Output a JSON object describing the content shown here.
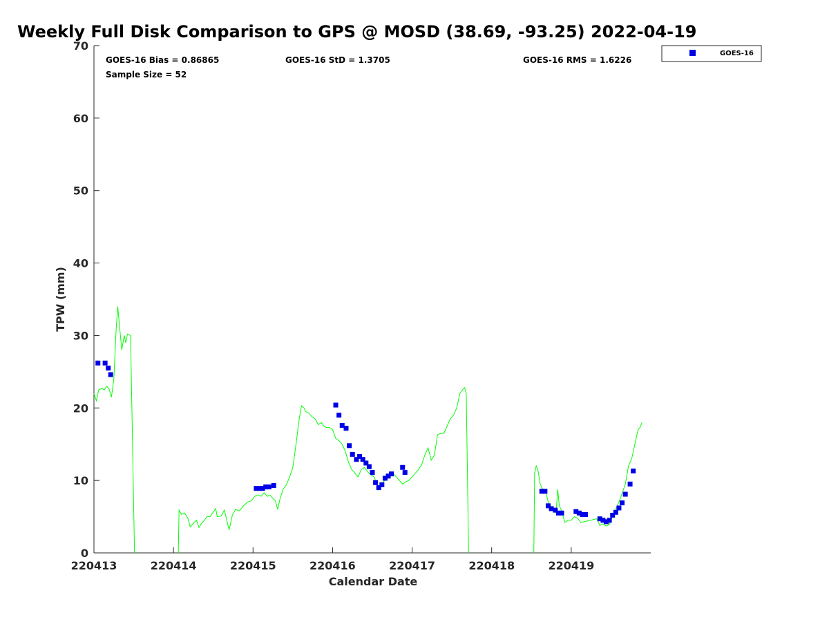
{
  "chart_data": {
    "type": "scatter",
    "title": "Weekly Full Disk Comparison to GPS @ MOSD (38.69, -93.25) 2022-04-19",
    "xlabel": "Calendar Date",
    "ylabel": "TPW (mm)",
    "xlim": [
      0,
      7
    ],
    "ylim": [
      0,
      70
    ],
    "x_tick_positions": [
      0,
      1,
      2,
      3,
      4,
      5,
      6
    ],
    "x_tick_labels": [
      "220413",
      "220414",
      "220415",
      "220416",
      "220417",
      "220418",
      "220419"
    ],
    "y_ticks": [
      0,
      10,
      20,
      30,
      40,
      50,
      60,
      70
    ],
    "grid": false,
    "legend_position": "outside-top-right",
    "stats": {
      "bias": "GOES-16 Bias = 0.86865",
      "std": "GOES-16 StD = 1.3705",
      "rms": "GOES-16 RMS = 1.6226",
      "sample_size": "Sample Size = 52"
    },
    "gps_line": {
      "color": "#00ff00",
      "segments": [
        [
          [
            0.0,
            22.0
          ],
          [
            0.03,
            21.0
          ],
          [
            0.06,
            22.5
          ],
          [
            0.1,
            22.7
          ],
          [
            0.13,
            22.5
          ],
          [
            0.16,
            23.0
          ],
          [
            0.19,
            22.6
          ],
          [
            0.22,
            21.5
          ],
          [
            0.25,
            24.0
          ],
          [
            0.28,
            31.0
          ],
          [
            0.3,
            34.0
          ],
          [
            0.32,
            31.5
          ],
          [
            0.35,
            28.0
          ],
          [
            0.38,
            30.0
          ],
          [
            0.4,
            29.0
          ],
          [
            0.42,
            30.2
          ],
          [
            0.46,
            30.0
          ],
          [
            0.51,
            0.0
          ]
        ],
        [
          [
            1.06,
            0.0
          ],
          [
            1.07,
            5.9
          ],
          [
            1.1,
            5.3
          ],
          [
            1.14,
            5.5
          ],
          [
            1.18,
            4.8
          ],
          [
            1.21,
            3.6
          ],
          [
            1.26,
            4.2
          ],
          [
            1.29,
            4.5
          ],
          [
            1.32,
            3.5
          ],
          [
            1.36,
            4.2
          ],
          [
            1.39,
            4.5
          ],
          [
            1.42,
            5.0
          ],
          [
            1.46,
            5.0
          ],
          [
            1.49,
            5.5
          ],
          [
            1.53,
            6.1
          ],
          [
            1.55,
            5.0
          ],
          [
            1.6,
            5.1
          ],
          [
            1.64,
            5.9
          ],
          [
            1.67,
            4.5
          ],
          [
            1.7,
            3.2
          ],
          [
            1.74,
            5.2
          ],
          [
            1.78,
            6.0
          ],
          [
            1.83,
            5.8
          ],
          [
            1.88,
            6.5
          ],
          [
            1.93,
            7.0
          ],
          [
            1.98,
            7.2
          ],
          [
            2.02,
            7.8
          ],
          [
            2.06,
            8.0
          ],
          [
            2.1,
            7.8
          ],
          [
            2.14,
            8.3
          ],
          [
            2.18,
            7.8
          ],
          [
            2.21,
            8.0
          ],
          [
            2.25,
            7.5
          ],
          [
            2.28,
            7.2
          ],
          [
            2.31,
            6.0
          ],
          [
            2.34,
            7.5
          ],
          [
            2.38,
            8.8
          ],
          [
            2.42,
            9.4
          ],
          [
            2.46,
            10.5
          ],
          [
            2.5,
            11.8
          ],
          [
            2.54,
            15.0
          ],
          [
            2.58,
            18.5
          ],
          [
            2.61,
            20.3
          ],
          [
            2.64,
            20.0
          ],
          [
            2.66,
            19.5
          ],
          [
            2.7,
            19.3
          ],
          [
            2.74,
            18.8
          ],
          [
            2.78,
            18.5
          ],
          [
            2.82,
            17.7
          ],
          [
            2.86,
            18.0
          ],
          [
            2.89,
            17.5
          ],
          [
            2.92,
            17.3
          ],
          [
            2.96,
            17.3
          ],
          [
            3.0,
            17.0
          ],
          [
            3.04,
            15.8
          ],
          [
            3.08,
            15.5
          ],
          [
            3.12,
            15.0
          ],
          [
            3.16,
            14.0
          ],
          [
            3.2,
            12.5
          ],
          [
            3.24,
            11.5
          ],
          [
            3.28,
            11.0
          ],
          [
            3.32,
            10.5
          ],
          [
            3.36,
            11.5
          ],
          [
            3.4,
            11.8
          ],
          [
            3.44,
            11.2
          ],
          [
            3.48,
            10.8
          ],
          [
            3.52,
            10.5
          ],
          [
            3.56,
            9.5
          ],
          [
            3.6,
            8.8
          ],
          [
            3.64,
            9.8
          ],
          [
            3.68,
            10.3
          ],
          [
            3.72,
            10.5
          ],
          [
            3.76,
            11.0
          ],
          [
            3.8,
            10.5
          ],
          [
            3.84,
            10.0
          ],
          [
            3.88,
            9.5
          ],
          [
            3.92,
            9.8
          ],
          [
            3.96,
            10.0
          ],
          [
            4.0,
            10.5
          ],
          [
            4.04,
            11.0
          ],
          [
            4.08,
            11.5
          ],
          [
            4.12,
            12.2
          ],
          [
            4.16,
            13.5
          ],
          [
            4.2,
            14.5
          ],
          [
            4.24,
            12.8
          ],
          [
            4.28,
            13.5
          ],
          [
            4.32,
            16.3
          ],
          [
            4.36,
            16.5
          ],
          [
            4.4,
            16.5
          ],
          [
            4.44,
            17.5
          ],
          [
            4.48,
            18.5
          ],
          [
            4.52,
            19.0
          ],
          [
            4.56,
            20.0
          ],
          [
            4.6,
            22.0
          ],
          [
            4.64,
            22.6
          ],
          [
            4.66,
            22.8
          ],
          [
            4.68,
            22.0
          ],
          [
            4.71,
            0.0
          ]
        ],
        [
          [
            5.53,
            0.0
          ],
          [
            5.54,
            11.0
          ],
          [
            5.56,
            12.0
          ],
          [
            5.58,
            11.5
          ],
          [
            5.61,
            9.5
          ],
          [
            5.64,
            8.8
          ],
          [
            5.68,
            8.5
          ],
          [
            5.71,
            7.0
          ],
          [
            5.74,
            6.5
          ],
          [
            5.78,
            6.0
          ],
          [
            5.81,
            5.5
          ],
          [
            5.83,
            8.8
          ],
          [
            5.85,
            6.5
          ],
          [
            5.88,
            5.8
          ],
          [
            5.92,
            4.2
          ],
          [
            5.96,
            4.5
          ],
          [
            6.0,
            4.5
          ],
          [
            6.04,
            5.0
          ],
          [
            6.08,
            4.8
          ],
          [
            6.12,
            4.2
          ],
          [
            6.16,
            4.3
          ],
          [
            6.2,
            4.4
          ],
          [
            6.24,
            4.5
          ],
          [
            6.28,
            4.6
          ],
          [
            6.32,
            4.7
          ],
          [
            6.36,
            3.8
          ],
          [
            6.4,
            4.0
          ],
          [
            6.44,
            3.7
          ],
          [
            6.48,
            3.9
          ],
          [
            6.52,
            5.0
          ],
          [
            6.56,
            6.0
          ],
          [
            6.6,
            7.0
          ],
          [
            6.64,
            8.2
          ],
          [
            6.68,
            9.5
          ],
          [
            6.72,
            12.0
          ],
          [
            6.76,
            13.0
          ],
          [
            6.8,
            15.0
          ],
          [
            6.84,
            17.0
          ],
          [
            6.86,
            17.2
          ],
          [
            6.89,
            18.0
          ]
        ]
      ]
    },
    "series": [
      {
        "name": "GOES-16",
        "color": "#0000e6",
        "marker": "square",
        "points": [
          [
            0.05,
            26.2
          ],
          [
            0.14,
            26.2
          ],
          [
            0.18,
            25.5
          ],
          [
            0.21,
            24.6
          ],
          [
            2.04,
            8.9
          ],
          [
            2.08,
            8.9
          ],
          [
            2.12,
            8.9
          ],
          [
            2.16,
            9.1
          ],
          [
            2.2,
            9.1
          ],
          [
            2.26,
            9.3
          ],
          [
            3.04,
            20.4
          ],
          [
            3.08,
            19.0
          ],
          [
            3.12,
            17.6
          ],
          [
            3.17,
            17.2
          ],
          [
            3.21,
            14.8
          ],
          [
            3.25,
            13.6
          ],
          [
            3.3,
            12.9
          ],
          [
            3.34,
            13.3
          ],
          [
            3.38,
            12.9
          ],
          [
            3.42,
            12.4
          ],
          [
            3.46,
            11.9
          ],
          [
            3.5,
            11.1
          ],
          [
            3.54,
            9.7
          ],
          [
            3.58,
            9.0
          ],
          [
            3.62,
            9.4
          ],
          [
            3.66,
            10.3
          ],
          [
            3.7,
            10.6
          ],
          [
            3.74,
            10.9
          ],
          [
            3.88,
            11.8
          ],
          [
            3.91,
            11.1
          ],
          [
            5.63,
            8.5
          ],
          [
            5.67,
            8.5
          ],
          [
            5.71,
            6.5
          ],
          [
            5.75,
            6.1
          ],
          [
            5.8,
            5.9
          ],
          [
            5.84,
            5.5
          ],
          [
            5.88,
            5.5
          ],
          [
            6.06,
            5.7
          ],
          [
            6.1,
            5.5
          ],
          [
            6.14,
            5.3
          ],
          [
            6.18,
            5.3
          ],
          [
            6.36,
            4.7
          ],
          [
            6.4,
            4.5
          ],
          [
            6.44,
            4.3
          ],
          [
            6.48,
            4.5
          ],
          [
            6.52,
            5.2
          ],
          [
            6.56,
            5.6
          ],
          [
            6.6,
            6.2
          ],
          [
            6.64,
            6.9
          ],
          [
            6.68,
            8.1
          ],
          [
            6.74,
            9.5
          ],
          [
            6.78,
            11.3
          ]
        ]
      }
    ]
  }
}
